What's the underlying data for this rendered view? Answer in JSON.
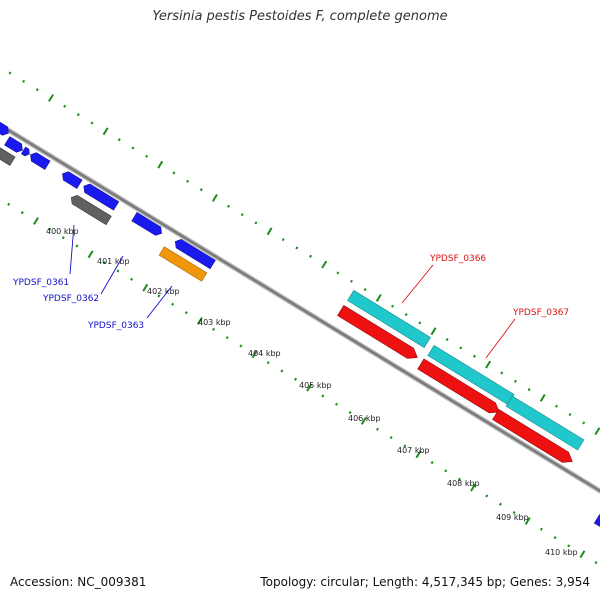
{
  "title": "Yersinia pestis Pestoides F, complete genome",
  "footer": {
    "accession": "Accession: NC_009381",
    "topology": "Topology: circular; Length: 4,517,345 bp; Genes: 3,954"
  },
  "scale": {
    "ticks": [
      "400 kbp",
      "401 kbp",
      "402 kbp",
      "403 kbp",
      "404 kbp",
      "405 kbp",
      "406 kbp",
      "407 kbp",
      "408 kbp",
      "409 kbp",
      "410 kbp"
    ]
  },
  "gene_labels": {
    "ypdsf_0361": "YPDSF_0361",
    "ypdsf_0362": "YPDSF_0362",
    "ypdsf_0363": "YPDSF_0363",
    "ypdsf_0366": "YPDSF_0366",
    "ypdsf_0367": "YPDSF_0367"
  },
  "colors": {
    "backbone": "#8a8a8a",
    "ticks": "#1e8c1e",
    "blue_genes": "#1a1aee",
    "gray_genes": "#606060",
    "orange_gene": "#f0960a",
    "cyan_genes": "#20c8cc",
    "red_genes": "#ee1111",
    "label_blue": "#1111cc",
    "label_red": "#dd1111"
  }
}
